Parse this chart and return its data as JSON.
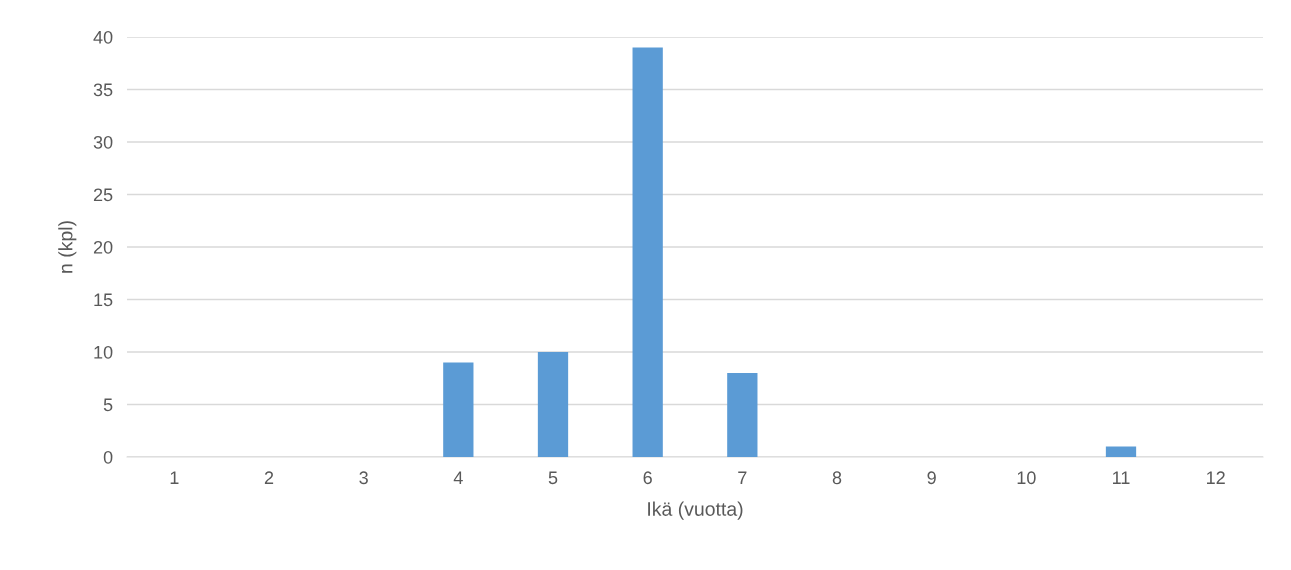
{
  "chart_data": {
    "type": "bar",
    "xlabel": "Ikä (vuotta)",
    "ylabel": "n (kpl)",
    "categories": [
      "1",
      "2",
      "3",
      "4",
      "5",
      "6",
      "7",
      "8",
      "9",
      "10",
      "11",
      "12"
    ],
    "values": [
      0,
      0,
      0,
      9,
      10,
      39,
      8,
      0,
      0,
      0,
      1,
      0
    ],
    "color": "#5b9bd5",
    "ylim": [
      0,
      40
    ],
    "yticks": [
      0,
      5,
      10,
      15,
      20,
      25,
      30,
      35,
      40
    ],
    "grid": "y"
  }
}
